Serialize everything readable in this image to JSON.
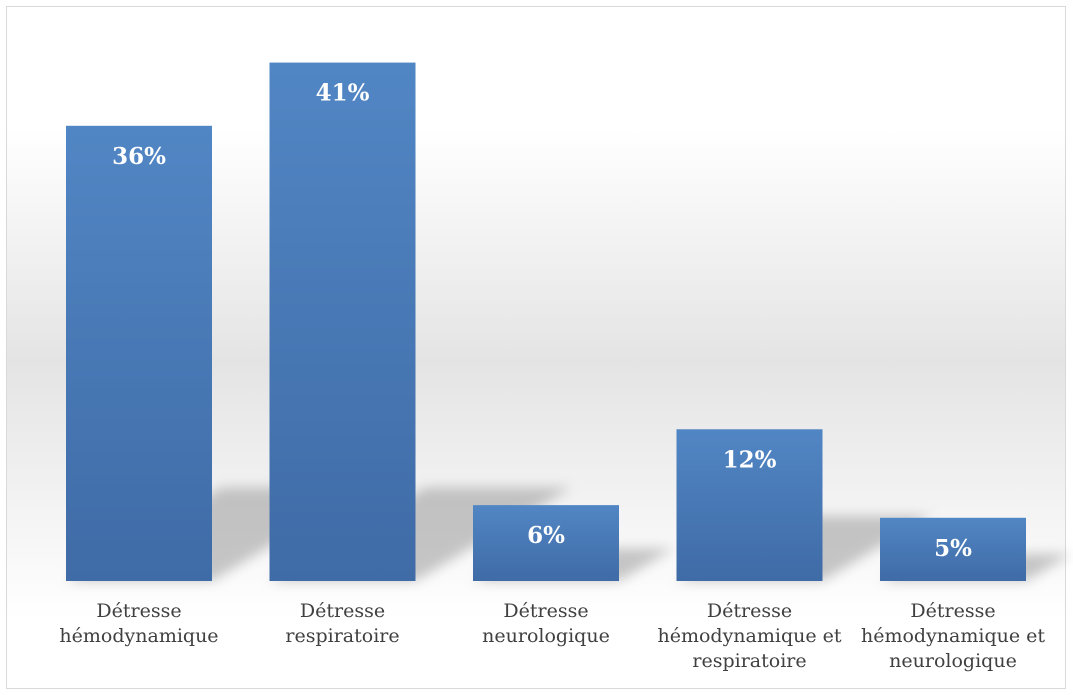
{
  "chart_data": {
    "type": "bar",
    "title": "",
    "xlabel": "",
    "ylabel": "",
    "categories": [
      [
        "Détresse",
        "hémodynamique"
      ],
      [
        "Détresse",
        "respiratoire"
      ],
      [
        "Détresse",
        "neurologique"
      ],
      [
        "Détresse",
        "hémodynamique et",
        "respiratoire"
      ],
      [
        "Détresse",
        "hémodynamique et",
        "neurologique"
      ]
    ],
    "values": [
      36,
      41,
      6,
      12,
      5
    ],
    "data_labels": [
      "36%",
      "41%",
      "6%",
      "12%",
      "5%"
    ],
    "ylim": [
      0,
      45
    ],
    "grid": false,
    "legend": "none",
    "bar_color": "#4a7ab8"
  }
}
